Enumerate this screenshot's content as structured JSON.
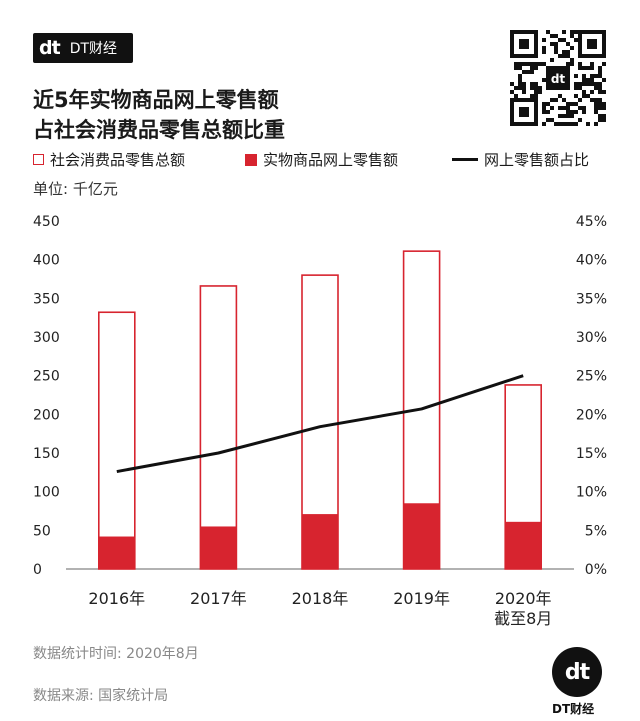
{
  "brand": {
    "logo_mark": "dt",
    "logo_text": "DT财经"
  },
  "title_lines": [
    "近5年实物商品网上零售额",
    "占社会消费品零售总额比重"
  ],
  "legend": {
    "total": "社会消费品零售总额",
    "online": "实物商品网上零售额",
    "ratio": "网上零售额占比"
  },
  "unit_label": "单位: 千亿元",
  "colors": {
    "accent": "#d7242f",
    "line": "#111111",
    "axis": "#666666"
  },
  "chart_data": {
    "type": "bar",
    "categories": [
      "2016年",
      "2017年",
      "2018年",
      "2019年",
      "2020年"
    ],
    "category_sublabels": [
      "",
      "",
      "",
      "",
      "截至8月"
    ],
    "series": [
      {
        "name": "社会消费品零售总额",
        "type": "bar-outline",
        "values": [
          332,
          366,
          380,
          411,
          238
        ]
      },
      {
        "name": "实物商品网上零售额",
        "type": "bar-filled",
        "values": [
          42,
          55,
          71,
          85,
          61
        ]
      },
      {
        "name": "网上零售额占比",
        "type": "line",
        "axis": "right",
        "values": [
          12.6,
          15.0,
          18.4,
          20.7,
          25.0
        ]
      }
    ],
    "ylim": [
      0,
      450
    ],
    "yticks": [
      "0",
      "50",
      "100",
      "150",
      "200",
      "250",
      "300",
      "350",
      "400",
      "450"
    ],
    "y2lim": [
      0,
      45
    ],
    "y2ticks": [
      "0%",
      "5%",
      "10%",
      "15%",
      "20%",
      "25%",
      "30%",
      "35%",
      "40%",
      "45%"
    ],
    "grid": false,
    "legend_position": "top"
  },
  "footer": {
    "time": "数据统计时间: 2020年8月",
    "source": "数据来源: 国家统计局",
    "logo_mark": "dt",
    "logo_text": "DT财经"
  }
}
